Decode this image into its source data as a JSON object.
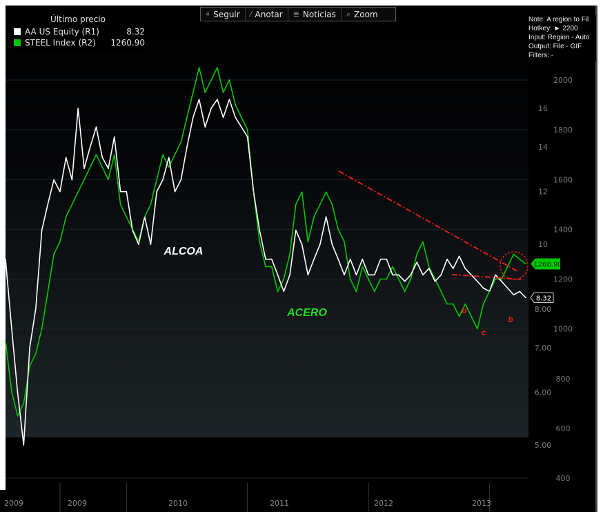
{
  "toolbar": {
    "items": [
      {
        "label": "Seguir",
        "icon": "crosshair-icon",
        "glyph": "⌖"
      },
      {
        "label": "Anotar",
        "icon": "pencil-icon",
        "glyph": "⁄"
      },
      {
        "label": "Noticias",
        "icon": "news-icon",
        "glyph": "≣"
      },
      {
        "label": "Zoom",
        "icon": "magnifier-icon",
        "glyph": "⌕"
      }
    ]
  },
  "legend": {
    "title": "Último precio",
    "items": [
      {
        "name": "AA US Equity  (R1)",
        "value": "8.32",
        "color": "#ffffff"
      },
      {
        "name": "STEEL Index  (R2)",
        "value": "1260.90",
        "color": "#00c800"
      }
    ]
  },
  "hotkey": {
    "lines": [
      "Note: A region to Fil",
      "Hotkey: ► 2200",
      "Input: Region - Auto",
      "Output: File - GIF",
      "Filters: -"
    ]
  },
  "annotations": {
    "alcoa": "ALCOA",
    "acero": "ACERO",
    "wave_b1": "b",
    "wave_c": "c",
    "wave_b2": "b"
  },
  "colors": {
    "aa": "#ffffff",
    "steel": "#00c800",
    "trend": "#e0201c",
    "steel_tag": "#00c800"
  },
  "chart_data": {
    "type": "line",
    "x_ticks": [
      "2009",
      "2009",
      "2010",
      "2011",
      "2012",
      "2013"
    ],
    "y1_ticks": [
      "16",
      "14",
      "12",
      "10",
      "8.00",
      "7.00",
      "6.00",
      "5.00"
    ],
    "y2_ticks": [
      "2000",
      "1800",
      "1600",
      "1400",
      "1200",
      "1000",
      "800",
      "600",
      "400"
    ],
    "last_labels": {
      "steel": "1260.90",
      "aa": "8.32"
    },
    "series": [
      {
        "name": "AA US Equity  (R1)",
        "color": "#ffffff",
        "x": [
          2009.0,
          2009.05,
          2009.1,
          2009.15,
          2009.2,
          2009.25,
          2009.3,
          2009.35,
          2009.4,
          2009.45,
          2009.5,
          2009.55,
          2009.6,
          2009.65,
          2009.7,
          2009.75,
          2009.8,
          2009.85,
          2009.9,
          2009.95,
          2010.0,
          2010.05,
          2010.1,
          2010.15,
          2010.2,
          2010.25,
          2010.3,
          2010.35,
          2010.4,
          2010.45,
          2010.5,
          2010.55,
          2010.6,
          2010.65,
          2010.7,
          2010.75,
          2010.8,
          2010.85,
          2010.9,
          2010.95,
          2011.0,
          2011.05,
          2011.1,
          2011.15,
          2011.2,
          2011.25,
          2011.3,
          2011.35,
          2011.4,
          2011.45,
          2011.5,
          2011.55,
          2011.6,
          2011.65,
          2011.7,
          2011.75,
          2011.8,
          2011.85,
          2011.9,
          2011.95,
          2012.0,
          2012.05,
          2012.1,
          2012.15,
          2012.2,
          2012.25,
          2012.3,
          2012.35,
          2012.4,
          2012.45,
          2012.5,
          2012.55,
          2012.6,
          2012.65,
          2012.7,
          2012.75,
          2012.8,
          2012.85,
          2012.9,
          2012.95,
          2013.0,
          2013.05,
          2013.1,
          2013.15,
          2013.2,
          2013.25,
          2013.3
        ],
        "y": [
          9.5,
          7.5,
          6.0,
          5.0,
          7.0,
          8.0,
          10.5,
          11.5,
          12.5,
          12.0,
          13.5,
          12.5,
          16.0,
          13.0,
          14.0,
          15.0,
          13.5,
          13.0,
          14.5,
          12.0,
          12.0,
          10.5,
          10.0,
          11.0,
          10.0,
          12.0,
          12.5,
          13.5,
          12.0,
          12.5,
          14.0,
          15.5,
          16.5,
          15.0,
          16.0,
          16.5,
          15.5,
          16.5,
          15.5,
          15.0,
          14.5,
          12.0,
          10.5,
          9.5,
          9.5,
          9.0,
          8.5,
          9.0,
          10.5,
          10.0,
          9.0,
          9.5,
          10.0,
          11.0,
          10.0,
          9.5,
          9.0,
          9.5,
          9.0,
          9.5,
          9.0,
          9.0,
          9.5,
          9.5,
          9.0,
          9.0,
          8.8,
          9.0,
          9.4,
          9.0,
          9.2,
          8.8,
          9.0,
          9.5,
          9.2,
          9.6,
          9.2,
          9.0,
          8.8,
          8.6,
          8.5,
          9.0,
          8.8,
          8.6,
          8.4,
          8.5,
          8.32
        ]
      },
      {
        "name": "STEEL Index  (R2)",
        "color": "#00c800",
        "x": [
          2009.0,
          2009.05,
          2009.1,
          2009.15,
          2009.2,
          2009.25,
          2009.3,
          2009.35,
          2009.4,
          2009.45,
          2009.5,
          2009.55,
          2009.6,
          2009.65,
          2009.7,
          2009.75,
          2009.8,
          2009.85,
          2009.9,
          2009.95,
          2010.0,
          2010.05,
          2010.1,
          2010.15,
          2010.2,
          2010.25,
          2010.3,
          2010.35,
          2010.4,
          2010.45,
          2010.5,
          2010.55,
          2010.6,
          2010.65,
          2010.7,
          2010.75,
          2010.8,
          2010.85,
          2010.9,
          2010.95,
          2011.0,
          2011.05,
          2011.1,
          2011.15,
          2011.2,
          2011.25,
          2011.3,
          2011.35,
          2011.4,
          2011.45,
          2011.5,
          2011.55,
          2011.6,
          2011.65,
          2011.7,
          2011.75,
          2011.8,
          2011.85,
          2011.9,
          2011.95,
          2012.0,
          2012.05,
          2012.1,
          2012.15,
          2012.2,
          2012.25,
          2012.3,
          2012.35,
          2012.4,
          2012.45,
          2012.5,
          2012.55,
          2012.6,
          2012.65,
          2012.7,
          2012.75,
          2012.8,
          2012.85,
          2012.9,
          2012.95,
          2013.0,
          2013.05,
          2013.1,
          2013.15,
          2013.2,
          2013.25,
          2013.3
        ],
        "y": [
          950,
          750,
          650,
          700,
          850,
          900,
          1000,
          1150,
          1300,
          1350,
          1450,
          1500,
          1550,
          1600,
          1650,
          1700,
          1650,
          1600,
          1700,
          1500,
          1450,
          1400,
          1350,
          1450,
          1500,
          1600,
          1700,
          1650,
          1700,
          1750,
          1850,
          1950,
          2050,
          1950,
          2000,
          2050,
          1950,
          2000,
          1900,
          1850,
          1800,
          1550,
          1350,
          1250,
          1250,
          1150,
          1200,
          1300,
          1500,
          1550,
          1350,
          1450,
          1500,
          1550,
          1500,
          1400,
          1350,
          1200,
          1150,
          1250,
          1200,
          1150,
          1200,
          1200,
          1250,
          1200,
          1150,
          1200,
          1300,
          1350,
          1250,
          1200,
          1150,
          1100,
          1100,
          1050,
          1100,
          1050,
          1000,
          1100,
          1150,
          1200,
          1200,
          1250,
          1300,
          1280,
          1260.9
        ]
      }
    ]
  }
}
